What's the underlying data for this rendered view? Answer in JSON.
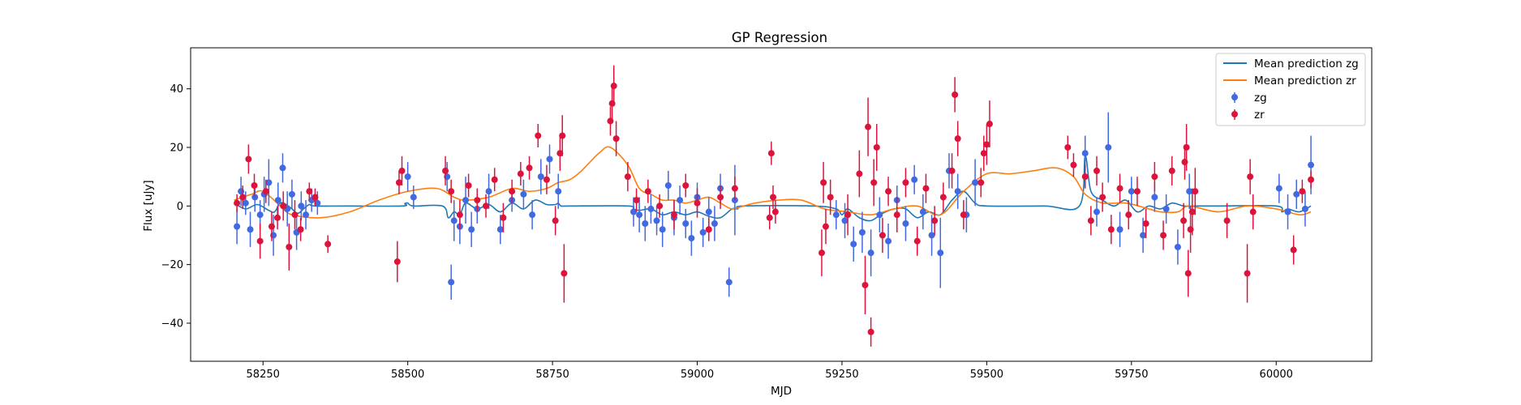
{
  "chart_data": {
    "type": "scatter",
    "title": "GP Regression",
    "xlabel": "MJD",
    "ylabel": "Flux [uJy]",
    "xlim": [
      58125,
      60165
    ],
    "ylim": [
      -53,
      54
    ],
    "xticks": [
      58250,
      58500,
      58750,
      59000,
      59250,
      59500,
      59750,
      60000
    ],
    "yticks": [
      -40,
      -20,
      0,
      20,
      40
    ],
    "grid": false,
    "legend": "top-right",
    "colors": {
      "zg_line": "#1f77b4",
      "zr_line": "#ff7f0e",
      "zg_points": "#4169e1",
      "zr_points": "#dc143c"
    },
    "lines": [
      {
        "name": "Mean prediction zg",
        "x": [
          58200,
          58220,
          58240,
          58260,
          58270,
          58280,
          58290,
          58300,
          58310,
          58320,
          58330,
          58340,
          58400,
          58490,
          58495,
          58500,
          58510,
          58560,
          58570,
          58580,
          58590,
          58600,
          58620,
          58640,
          58660,
          58680,
          58700,
          58720,
          58740,
          58755,
          58760,
          58765,
          58780,
          58880,
          58890,
          58900,
          58920,
          58940,
          58960,
          58980,
          59000,
          59020,
          59040,
          59060,
          59070,
          59080,
          59200,
          59240,
          59250,
          59260,
          59280,
          59300,
          59320,
          59340,
          59360,
          59380,
          59400,
          59420,
          59440,
          59460,
          59480,
          59500,
          59600,
          59660,
          59670,
          59680,
          59700,
          59720,
          59740,
          59760,
          59780,
          59800,
          59820,
          59840,
          59860,
          59900,
          60000,
          60010,
          60020,
          60040,
          60060
        ],
        "y": [
          1,
          -1,
          0.5,
          -1.5,
          -2,
          1,
          0.5,
          -1,
          -2.5,
          -1,
          0.5,
          0,
          0,
          0,
          0.8,
          1,
          0,
          0,
          -4,
          -2,
          -3,
          1,
          -1,
          0.5,
          -2,
          1,
          -1,
          2,
          0.5,
          0.5,
          1,
          0,
          0,
          0,
          -1,
          -1.5,
          -1,
          -3,
          -2,
          -3,
          -2,
          -3.5,
          -4,
          -1,
          -1,
          0,
          0,
          -1,
          -3,
          -1,
          -4,
          -5,
          -2.5,
          -1,
          -1,
          -4,
          -2,
          -3,
          2,
          5,
          1,
          0,
          0,
          0,
          17,
          5,
          2,
          0,
          2,
          -2,
          0,
          -1,
          1,
          0,
          0,
          0,
          0,
          -2,
          -1,
          -2,
          0
        ]
      },
      {
        "name": "Mean prediction zr",
        "x": [
          58200,
          58230,
          58250,
          58280,
          58300,
          58350,
          58400,
          58450,
          58500,
          58550,
          58580,
          58600,
          58640,
          58680,
          58710,
          58740,
          58760,
          58780,
          58800,
          58830,
          58850,
          58880,
          58900,
          58920,
          58940,
          58960,
          58980,
          59000,
          59020,
          59040,
          59060,
          59080,
          59100,
          59140,
          59180,
          59220,
          59260,
          59300,
          59340,
          59380,
          59420,
          59460,
          59500,
          59540,
          59580,
          59620,
          59650,
          59670,
          59700,
          59740,
          59780,
          59800,
          59830,
          59850,
          59900,
          59950,
          60000,
          60040,
          60060
        ],
        "y": [
          2,
          4,
          5,
          0,
          -3,
          -4,
          -2,
          2,
          5,
          6,
          3,
          2,
          3,
          6,
          5,
          6,
          8,
          9,
          12,
          18,
          20,
          14,
          6,
          4,
          2,
          2,
          1,
          2,
          3,
          1,
          -1,
          0,
          1,
          2,
          2,
          -1,
          -2,
          -3,
          -1,
          0,
          -3,
          5,
          11,
          11,
          12,
          13,
          10,
          4,
          1,
          1,
          -1,
          -2,
          -2,
          0,
          -2,
          0,
          -1,
          -3,
          -2
        ]
      }
    ],
    "series": [
      {
        "name": "zg",
        "x": [
          58205,
          58212,
          58220,
          58228,
          58236,
          58245,
          58252,
          58260,
          58268,
          58276,
          58284,
          58292,
          58300,
          58308,
          58316,
          58324,
          58334,
          58344,
          58500,
          58510,
          58568,
          58575,
          58580,
          58590,
          58600,
          58610,
          58620,
          58640,
          58660,
          58680,
          58700,
          58715,
          58730,
          58745,
          58760,
          58890,
          58900,
          58910,
          58920,
          58930,
          58940,
          58950,
          58960,
          58970,
          58980,
          58990,
          59000,
          59010,
          59020,
          59030,
          59040,
          59055,
          59065,
          59240,
          59255,
          59270,
          59285,
          59300,
          59315,
          59330,
          59345,
          59360,
          59375,
          59390,
          59405,
          59420,
          59435,
          59450,
          59465,
          59480,
          59670,
          59690,
          59710,
          59730,
          59750,
          59770,
          59790,
          59810,
          59830,
          59850,
          60005,
          60020,
          60035,
          60050,
          60060
        ],
        "y": [
          -7,
          5,
          1,
          -8,
          3,
          -3,
          4,
          8,
          -10,
          2,
          13,
          -1,
          4,
          -9,
          0,
          -3,
          2,
          1,
          10,
          3,
          10,
          -26,
          -5,
          -7,
          2,
          -8,
          -1,
          5,
          -8,
          2,
          4,
          -3,
          10,
          16,
          5,
          -2,
          -3,
          -6,
          -1,
          -5,
          -8,
          7,
          -4,
          2,
          -6,
          -11,
          3,
          -9,
          -2,
          -6,
          6,
          -26,
          2,
          -3,
          -5,
          -13,
          -9,
          -16,
          -3,
          -12,
          2,
          -6,
          9,
          -2,
          -10,
          -16,
          12,
          5,
          -3,
          8,
          18,
          -2,
          20,
          -8,
          5,
          -10,
          3,
          -1,
          -14,
          5,
          6,
          -2,
          4,
          -1,
          14
        ],
        "err": [
          6,
          5,
          4,
          6,
          5,
          5,
          6,
          8,
          7,
          6,
          5,
          6,
          5,
          6,
          5,
          5,
          4,
          4,
          5,
          4,
          5,
          6,
          7,
          6,
          8,
          6,
          5,
          6,
          5,
          4,
          5,
          5,
          6,
          5,
          6,
          5,
          6,
          6,
          5,
          5,
          6,
          5,
          6,
          5,
          5,
          6,
          5,
          5,
          5,
          6,
          5,
          5,
          12,
          5,
          6,
          6,
          7,
          8,
          6,
          6,
          5,
          6,
          5,
          6,
          7,
          12,
          6,
          6,
          6,
          8,
          6,
          5,
          12,
          6,
          5,
          6,
          5,
          5,
          6,
          6,
          5,
          6,
          5,
          6,
          10
        ]
      },
      {
        "name": "zr",
        "x": [
          58205,
          58215,
          58225,
          58235,
          58245,
          58255,
          58265,
          58275,
          58285,
          58295,
          58305,
          58315,
          58330,
          58340,
          58362,
          58482,
          58485,
          58490,
          58565,
          58575,
          58590,
          58605,
          58620,
          58635,
          58650,
          58665,
          58680,
          58695,
          58710,
          58725,
          58740,
          58755,
          58763,
          58767,
          58770,
          58850,
          58853,
          58856,
          58860,
          58880,
          58895,
          58915,
          58935,
          58960,
          58980,
          59000,
          59020,
          59040,
          59065,
          59125,
          59128,
          59131,
          59135,
          59215,
          59218,
          59222,
          59230,
          59260,
          59280,
          59290,
          59295,
          59300,
          59305,
          59310,
          59320,
          59330,
          59345,
          59360,
          59380,
          59395,
          59410,
          59425,
          59440,
          59445,
          59450,
          59460,
          59490,
          59495,
          59500,
          59505,
          59640,
          59650,
          59670,
          59680,
          59690,
          59700,
          59715,
          59730,
          59745,
          59760,
          59775,
          59790,
          59805,
          59820,
          59840,
          59842,
          59845,
          59848,
          59852,
          59855,
          59860,
          59915,
          59950,
          59955,
          59960,
          60030,
          60045,
          60060
        ],
        "y": [
          1,
          3,
          16,
          7,
          -12,
          5,
          -7,
          -4,
          0,
          -14,
          -3,
          -8,
          5,
          3,
          -13,
          -19,
          8,
          12,
          12,
          5,
          -3,
          7,
          2,
          0,
          9,
          -4,
          5,
          11,
          13,
          24,
          9,
          -5,
          18,
          24,
          -23,
          29,
          35,
          41,
          23,
          10,
          2,
          5,
          0,
          -3,
          7,
          1,
          -8,
          3,
          6,
          -4,
          18,
          3,
          -2,
          -16,
          8,
          -7,
          3,
          -3,
          11,
          -27,
          27,
          -43,
          8,
          20,
          -10,
          5,
          -3,
          8,
          -12,
          6,
          -5,
          3,
          12,
          38,
          23,
          -3,
          8,
          18,
          21,
          28,
          20,
          14,
          10,
          -5,
          12,
          3,
          -8,
          6,
          -3,
          5,
          -6,
          10,
          -10,
          12,
          -5,
          15,
          20,
          -23,
          -8,
          -2,
          5,
          -5,
          -23,
          10,
          -2,
          -15,
          5,
          9
        ],
        "err": [
          3,
          4,
          5,
          4,
          6,
          4,
          5,
          4,
          5,
          8,
          5,
          4,
          3,
          3,
          3,
          7,
          4,
          5,
          5,
          4,
          5,
          4,
          4,
          4,
          4,
          5,
          4,
          4,
          4,
          4,
          5,
          5,
          6,
          7,
          10,
          5,
          6,
          7,
          6,
          5,
          4,
          4,
          4,
          5,
          4,
          5,
          4,
          4,
          4,
          4,
          4,
          4,
          4,
          8,
          7,
          6,
          6,
          7,
          8,
          10,
          10,
          5,
          8,
          8,
          6,
          5,
          6,
          5,
          5,
          5,
          5,
          5,
          6,
          6,
          6,
          5,
          5,
          6,
          7,
          8,
          4,
          4,
          4,
          5,
          5,
          5,
          5,
          5,
          5,
          5,
          5,
          5,
          5,
          5,
          6,
          6,
          8,
          8,
          8,
          8,
          8,
          6,
          10,
          6,
          6,
          5,
          4,
          3
        ]
      }
    ]
  }
}
